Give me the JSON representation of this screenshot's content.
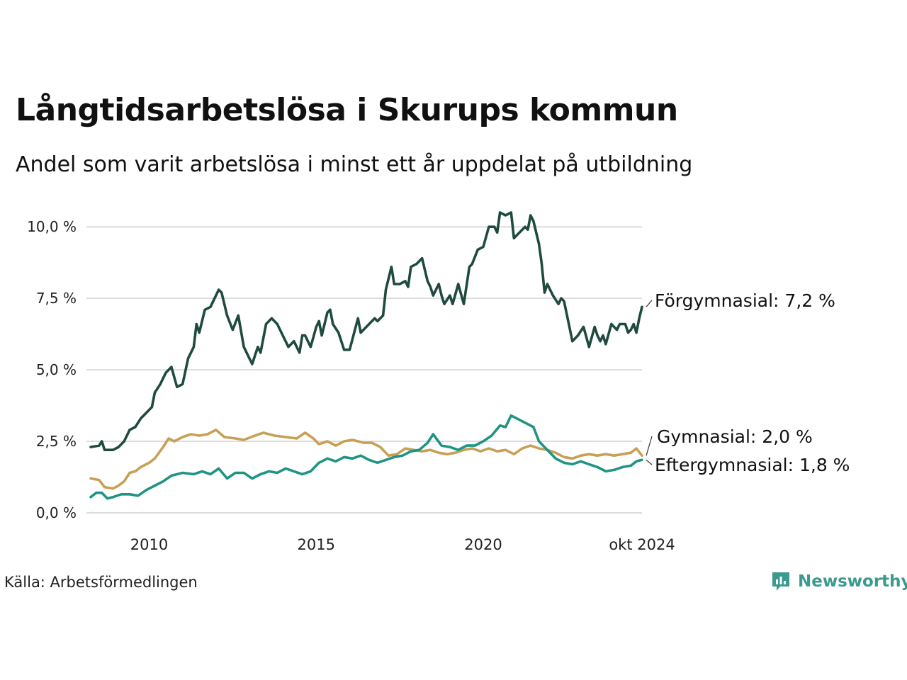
{
  "header": {
    "title": "Långtidsarbetslösa i Skurups kommun",
    "subtitle": "Andel som varit arbetslösa i minst ett år uppdelat på utbildning"
  },
  "footer": {
    "source": "Källa: Arbetsförmedlingen",
    "brand": "Newsworthy",
    "brand_icon": "bar-chart-logo-icon",
    "brand_color": "#3a9a8f"
  },
  "chart_data": {
    "type": "line",
    "x_range": [
      "2008-04",
      "2024-10"
    ],
    "ylim": [
      0,
      10.5
    ],
    "grid": "horizontal",
    "y_ticks": [
      {
        "value": 0,
        "label": "0,0 %"
      },
      {
        "value": 2.5,
        "label": "2,5 %"
      },
      {
        "value": 5,
        "label": "5,0 %"
      },
      {
        "value": 7.5,
        "label": "7,5 %"
      },
      {
        "value": 10,
        "label": "10,0 %"
      }
    ],
    "x_ticks": [
      {
        "value": "2010",
        "label": "2010"
      },
      {
        "value": "2015",
        "label": "2015"
      },
      {
        "value": "2020",
        "label": "2020"
      },
      {
        "value": "2024-10",
        "label": "okt 2024"
      }
    ],
    "series": [
      {
        "name": "Förgymnasial",
        "end_label": "Förgymnasial: 7,2 %",
        "color": "#1f4a40",
        "points": [
          [
            "2008-04",
            2.3
          ],
          [
            "2008-07",
            2.35
          ],
          [
            "2008-08",
            2.5
          ],
          [
            "2008-09",
            2.2
          ],
          [
            "2008-12",
            2.2
          ],
          [
            "2009-02",
            2.3
          ],
          [
            "2009-04",
            2.5
          ],
          [
            "2009-06",
            2.9
          ],
          [
            "2009-08",
            3.0
          ],
          [
            "2009-10",
            3.3
          ],
          [
            "2009-12",
            3.5
          ],
          [
            "2010-02",
            3.7
          ],
          [
            "2010-03",
            4.2
          ],
          [
            "2010-05",
            4.5
          ],
          [
            "2010-07",
            4.9
          ],
          [
            "2010-09",
            5.1
          ],
          [
            "2010-11",
            4.4
          ],
          [
            "2011-01",
            4.5
          ],
          [
            "2011-03",
            5.4
          ],
          [
            "2011-05",
            5.8
          ],
          [
            "2011-06",
            6.6
          ],
          [
            "2011-07",
            6.3
          ],
          [
            "2011-09",
            7.1
          ],
          [
            "2011-11",
            7.2
          ],
          [
            "2011-12",
            7.4
          ],
          [
            "2012-02",
            7.8
          ],
          [
            "2012-03",
            7.7
          ],
          [
            "2012-05",
            6.9
          ],
          [
            "2012-07",
            6.4
          ],
          [
            "2012-09",
            6.9
          ],
          [
            "2012-11",
            5.8
          ],
          [
            "2013-02",
            5.2
          ],
          [
            "2013-04",
            5.8
          ],
          [
            "2013-05",
            5.6
          ],
          [
            "2013-07",
            6.6
          ],
          [
            "2013-09",
            6.8
          ],
          [
            "2013-11",
            6.6
          ],
          [
            "2014-01",
            6.2
          ],
          [
            "2014-03",
            5.8
          ],
          [
            "2014-05",
            6.0
          ],
          [
            "2014-07",
            5.6
          ],
          [
            "2014-08",
            6.2
          ],
          [
            "2014-09",
            6.2
          ],
          [
            "2014-11",
            5.8
          ],
          [
            "2015-01",
            6.5
          ],
          [
            "2015-02",
            6.7
          ],
          [
            "2015-03",
            6.2
          ],
          [
            "2015-05",
            7.0
          ],
          [
            "2015-06",
            7.1
          ],
          [
            "2015-07",
            6.6
          ],
          [
            "2015-09",
            6.3
          ],
          [
            "2015-11",
            5.7
          ],
          [
            "2016-01",
            5.7
          ],
          [
            "2016-04",
            6.8
          ],
          [
            "2016-05",
            6.3
          ],
          [
            "2016-07",
            6.5
          ],
          [
            "2016-08",
            6.6
          ],
          [
            "2016-10",
            6.8
          ],
          [
            "2016-11",
            6.7
          ],
          [
            "2017-01",
            6.9
          ],
          [
            "2017-02",
            7.8
          ],
          [
            "2017-04",
            8.6
          ],
          [
            "2017-05",
            8.0
          ],
          [
            "2017-07",
            8.0
          ],
          [
            "2017-09",
            8.1
          ],
          [
            "2017-10",
            7.9
          ],
          [
            "2017-11",
            8.6
          ],
          [
            "2018-01",
            8.7
          ],
          [
            "2018-03",
            8.9
          ],
          [
            "2018-05",
            8.1
          ],
          [
            "2018-06",
            7.9
          ],
          [
            "2018-07",
            7.6
          ],
          [
            "2018-09",
            8.0
          ],
          [
            "2018-10",
            7.6
          ],
          [
            "2018-11",
            7.3
          ],
          [
            "2019-01",
            7.6
          ],
          [
            "2019-02",
            7.3
          ],
          [
            "2019-04",
            8.0
          ],
          [
            "2019-06",
            7.3
          ],
          [
            "2019-08",
            8.6
          ],
          [
            "2019-09",
            8.7
          ],
          [
            "2019-11",
            9.2
          ],
          [
            "2020-01",
            9.3
          ],
          [
            "2020-03",
            10.0
          ],
          [
            "2020-05",
            10.0
          ],
          [
            "2020-06",
            9.8
          ],
          [
            "2020-07",
            10.5
          ],
          [
            "2020-09",
            10.4
          ],
          [
            "2020-11",
            10.5
          ],
          [
            "2020-12",
            9.6
          ],
          [
            "2021-02",
            9.8
          ],
          [
            "2021-04",
            10.0
          ],
          [
            "2021-05",
            9.9
          ],
          [
            "2021-06",
            10.4
          ],
          [
            "2021-07",
            10.2
          ],
          [
            "2021-09",
            9.4
          ],
          [
            "2021-10",
            8.7
          ],
          [
            "2021-11",
            7.7
          ],
          [
            "2021-12",
            8.0
          ],
          [
            "2022-02",
            7.6
          ],
          [
            "2022-04",
            7.3
          ],
          [
            "2022-05",
            7.5
          ],
          [
            "2022-06",
            7.4
          ],
          [
            "2022-09",
            6.0
          ],
          [
            "2022-11",
            6.2
          ],
          [
            "2023-01",
            6.5
          ],
          [
            "2023-03",
            5.8
          ],
          [
            "2023-05",
            6.5
          ],
          [
            "2023-06",
            6.2
          ],
          [
            "2023-07",
            6.0
          ],
          [
            "2023-08",
            6.2
          ],
          [
            "2023-09",
            5.9
          ],
          [
            "2023-11",
            6.6
          ],
          [
            "2024-01",
            6.4
          ],
          [
            "2024-02",
            6.6
          ],
          [
            "2024-04",
            6.6
          ],
          [
            "2024-05",
            6.3
          ],
          [
            "2024-06",
            6.4
          ],
          [
            "2024-07",
            6.6
          ],
          [
            "2024-08",
            6.3
          ],
          [
            "2024-09",
            6.8
          ],
          [
            "2024-10",
            7.2
          ]
        ]
      },
      {
        "name": "Gymnasial",
        "end_label": "Gymnasial: 2,0 %",
        "color": "#c8a055",
        "points": [
          [
            "2008-04",
            1.2
          ],
          [
            "2008-07",
            1.15
          ],
          [
            "2008-09",
            0.9
          ],
          [
            "2008-12",
            0.85
          ],
          [
            "2009-02",
            0.95
          ],
          [
            "2009-04",
            1.1
          ],
          [
            "2009-06",
            1.4
          ],
          [
            "2009-08",
            1.45
          ],
          [
            "2009-10",
            1.6
          ],
          [
            "2010-01",
            1.75
          ],
          [
            "2010-03",
            1.9
          ],
          [
            "2010-06",
            2.3
          ],
          [
            "2010-08",
            2.6
          ],
          [
            "2010-10",
            2.5
          ],
          [
            "2011-01",
            2.65
          ],
          [
            "2011-04",
            2.75
          ],
          [
            "2011-07",
            2.7
          ],
          [
            "2011-10",
            2.75
          ],
          [
            "2012-01",
            2.9
          ],
          [
            "2012-04",
            2.65
          ],
          [
            "2012-08",
            2.6
          ],
          [
            "2012-11",
            2.55
          ],
          [
            "2013-03",
            2.7
          ],
          [
            "2013-06",
            2.8
          ],
          [
            "2013-10",
            2.7
          ],
          [
            "2014-02",
            2.65
          ],
          [
            "2014-06",
            2.6
          ],
          [
            "2014-09",
            2.8
          ],
          [
            "2014-12",
            2.6
          ],
          [
            "2015-02",
            2.4
          ],
          [
            "2015-05",
            2.5
          ],
          [
            "2015-08",
            2.35
          ],
          [
            "2015-11",
            2.5
          ],
          [
            "2016-02",
            2.55
          ],
          [
            "2016-06",
            2.45
          ],
          [
            "2016-09",
            2.45
          ],
          [
            "2016-12",
            2.3
          ],
          [
            "2017-03",
            2.0
          ],
          [
            "2017-06",
            2.05
          ],
          [
            "2017-09",
            2.25
          ],
          [
            "2017-12",
            2.2
          ],
          [
            "2018-03",
            2.15
          ],
          [
            "2018-06",
            2.2
          ],
          [
            "2018-09",
            2.1
          ],
          [
            "2018-12",
            2.05
          ],
          [
            "2019-03",
            2.1
          ],
          [
            "2019-06",
            2.2
          ],
          [
            "2019-09",
            2.25
          ],
          [
            "2019-12",
            2.15
          ],
          [
            "2020-03",
            2.25
          ],
          [
            "2020-06",
            2.15
          ],
          [
            "2020-09",
            2.2
          ],
          [
            "2020-12",
            2.05
          ],
          [
            "2021-03",
            2.25
          ],
          [
            "2021-06",
            2.35
          ],
          [
            "2021-09",
            2.25
          ],
          [
            "2021-12",
            2.2
          ],
          [
            "2022-03",
            2.1
          ],
          [
            "2022-06",
            1.95
          ],
          [
            "2022-09",
            1.9
          ],
          [
            "2022-12",
            2.0
          ],
          [
            "2023-03",
            2.05
          ],
          [
            "2023-06",
            2.0
          ],
          [
            "2023-09",
            2.05
          ],
          [
            "2023-12",
            2.0
          ],
          [
            "2024-03",
            2.05
          ],
          [
            "2024-06",
            2.1
          ],
          [
            "2024-08",
            2.25
          ],
          [
            "2024-10",
            2.0
          ]
        ]
      },
      {
        "name": "Eftergymnasial",
        "end_label": "Eftergymnasial: 1,8 %",
        "color": "#1f9484",
        "points": [
          [
            "2008-04",
            0.55
          ],
          [
            "2008-06",
            0.7
          ],
          [
            "2008-08",
            0.7
          ],
          [
            "2008-10",
            0.5
          ],
          [
            "2008-12",
            0.55
          ],
          [
            "2009-03",
            0.65
          ],
          [
            "2009-06",
            0.65
          ],
          [
            "2009-09",
            0.6
          ],
          [
            "2009-12",
            0.8
          ],
          [
            "2010-03",
            0.95
          ],
          [
            "2010-06",
            1.1
          ],
          [
            "2010-09",
            1.3
          ],
          [
            "2011-01",
            1.4
          ],
          [
            "2011-05",
            1.35
          ],
          [
            "2011-08",
            1.45
          ],
          [
            "2011-11",
            1.35
          ],
          [
            "2012-02",
            1.55
          ],
          [
            "2012-05",
            1.2
          ],
          [
            "2012-08",
            1.4
          ],
          [
            "2012-11",
            1.4
          ],
          [
            "2013-02",
            1.2
          ],
          [
            "2013-05",
            1.35
          ],
          [
            "2013-08",
            1.45
          ],
          [
            "2013-11",
            1.4
          ],
          [
            "2014-02",
            1.55
          ],
          [
            "2014-05",
            1.45
          ],
          [
            "2014-08",
            1.35
          ],
          [
            "2014-11",
            1.45
          ],
          [
            "2015-02",
            1.75
          ],
          [
            "2015-05",
            1.9
          ],
          [
            "2015-08",
            1.8
          ],
          [
            "2015-11",
            1.95
          ],
          [
            "2016-02",
            1.9
          ],
          [
            "2016-05",
            2.0
          ],
          [
            "2016-08",
            1.85
          ],
          [
            "2016-11",
            1.75
          ],
          [
            "2017-02",
            1.85
          ],
          [
            "2017-05",
            1.95
          ],
          [
            "2017-08",
            2.0
          ],
          [
            "2017-11",
            2.15
          ],
          [
            "2018-02",
            2.2
          ],
          [
            "2018-05",
            2.45
          ],
          [
            "2018-07",
            2.75
          ],
          [
            "2018-10",
            2.35
          ],
          [
            "2019-01",
            2.3
          ],
          [
            "2019-04",
            2.2
          ],
          [
            "2019-07",
            2.35
          ],
          [
            "2019-10",
            2.35
          ],
          [
            "2020-01",
            2.5
          ],
          [
            "2020-04",
            2.7
          ],
          [
            "2020-07",
            3.05
          ],
          [
            "2020-09",
            3.0
          ],
          [
            "2020-11",
            3.4
          ],
          [
            "2021-01",
            3.3
          ],
          [
            "2021-04",
            3.15
          ],
          [
            "2021-07",
            3.0
          ],
          [
            "2021-09",
            2.5
          ],
          [
            "2021-12",
            2.2
          ],
          [
            "2022-03",
            1.9
          ],
          [
            "2022-06",
            1.75
          ],
          [
            "2022-09",
            1.7
          ],
          [
            "2022-12",
            1.8
          ],
          [
            "2023-03",
            1.7
          ],
          [
            "2023-06",
            1.6
          ],
          [
            "2023-09",
            1.45
          ],
          [
            "2023-12",
            1.5
          ],
          [
            "2024-03",
            1.6
          ],
          [
            "2024-06",
            1.65
          ],
          [
            "2024-08",
            1.8
          ],
          [
            "2024-10",
            1.85
          ]
        ]
      }
    ]
  }
}
